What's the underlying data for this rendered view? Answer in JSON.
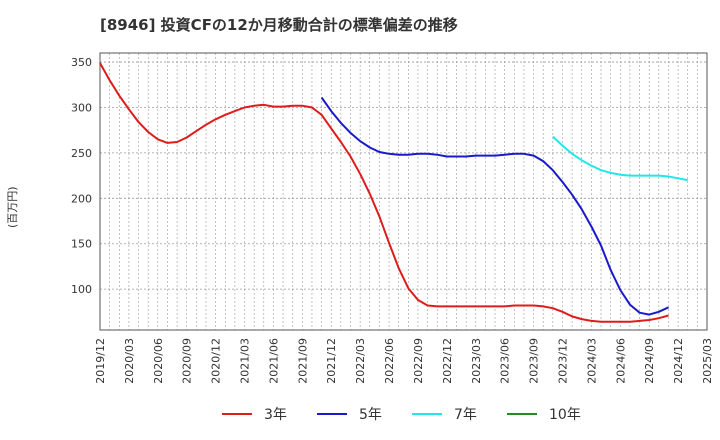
{
  "chart_data": {
    "type": "line",
    "title": "[8946]  投資CFの12か月移動合計の標準偏差の推移",
    "ylabel": "(百万円)",
    "xlabel": "",
    "ylim": [
      55,
      360
    ],
    "yticks": [
      100,
      150,
      200,
      250,
      300,
      350
    ],
    "ytick_labels": [
      "100",
      "150",
      "200",
      "250",
      "300",
      "350"
    ],
    "xticks": [
      "2019/12",
      "2020/03",
      "2020/06",
      "2020/09",
      "2020/12",
      "2021/03",
      "2021/06",
      "2021/09",
      "2021/12",
      "2022/03",
      "2022/06",
      "2022/09",
      "2022/12",
      "2023/03",
      "2023/06",
      "2023/09",
      "2023/12",
      "2024/03",
      "2024/06",
      "2024/09",
      "2024/12",
      "2025/03"
    ],
    "grid": true,
    "legend_position": "bottom",
    "series": [
      {
        "name": "3年",
        "color": "#dd1c1c",
        "start_index": 0,
        "values": [
          349,
          330,
          313,
          298,
          284,
          273,
          265,
          261,
          262,
          267,
          274,
          281,
          287,
          292,
          296,
          300,
          302,
          303,
          301,
          301,
          302,
          302,
          300,
          292,
          277,
          262,
          246,
          227,
          205,
          180,
          151,
          123,
          101,
          88,
          82,
          81,
          81,
          81,
          81,
          81,
          81,
          81,
          81,
          82,
          82,
          82,
          81,
          79,
          75,
          70,
          67,
          65,
          64,
          64,
          64,
          64,
          65,
          66,
          68,
          71
        ]
      },
      {
        "name": "5年",
        "color": "#1a1acc",
        "start_index": 23,
        "values": [
          311,
          296,
          283,
          272,
          263,
          256,
          251,
          249,
          248,
          248,
          249,
          249,
          248,
          246,
          246,
          246,
          247,
          247,
          247,
          248,
          249,
          249,
          247,
          241,
          231,
          218,
          204,
          188,
          169,
          148,
          121,
          99,
          83,
          74,
          72,
          75,
          80
        ]
      },
      {
        "name": "7年",
        "color": "#1ee8e8",
        "start_index": 47,
        "values": [
          268,
          258,
          249,
          242,
          236,
          231,
          228,
          226,
          225,
          225,
          225,
          225,
          224,
          222,
          220
        ]
      },
      {
        "name": "10年",
        "color": "#228b22",
        "start_index": 0,
        "values": []
      }
    ]
  }
}
